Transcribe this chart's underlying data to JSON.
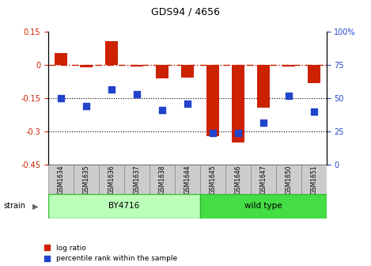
{
  "title": "GDS94 / 4656",
  "samples": [
    "GSM1634",
    "GSM1635",
    "GSM1636",
    "GSM1637",
    "GSM1638",
    "GSM1644",
    "GSM1645",
    "GSM1646",
    "GSM1647",
    "GSM1650",
    "GSM1651"
  ],
  "log_ratio": [
    0.055,
    -0.01,
    0.11,
    -0.005,
    -0.06,
    -0.055,
    -0.32,
    -0.35,
    -0.19,
    -0.005,
    -0.08
  ],
  "percentile_rank": [
    50,
    44,
    57,
    53,
    41,
    46,
    24,
    24,
    32,
    52,
    40
  ],
  "ylim_left": [
    -0.45,
    0.15
  ],
  "ylim_right": [
    0,
    100
  ],
  "yticks_left": [
    0.15,
    0.0,
    -0.15,
    -0.3,
    -0.45
  ],
  "yticks_left_labels": [
    "0.15",
    "0",
    "-0.15",
    "-0.3",
    "-0.45"
  ],
  "yticks_right": [
    100,
    75,
    50,
    25,
    0
  ],
  "yticks_right_labels": [
    "100%",
    "75",
    "50",
    "25",
    "0"
  ],
  "hlines_dotted": [
    -0.15,
    -0.3
  ],
  "hline_dashdot": 0.0,
  "bar_color": "#cc2200",
  "square_color": "#2244cc",
  "by4716_indices": [
    0,
    1,
    2,
    3,
    4,
    5
  ],
  "wildtype_indices": [
    6,
    7,
    8,
    9,
    10
  ],
  "by4716_label": "BY4716",
  "wildtype_label": "wild type",
  "strain_label": "strain",
  "legend_bar": "log ratio",
  "legend_square": "percentile rank within the sample",
  "strain_light_green": "#bbffbb",
  "strain_dark_green": "#44dd44",
  "tick_label_color_left": "#cc2200",
  "tick_label_color_right": "#2244cc",
  "sample_box_color": "#cccccc",
  "sample_box_edge": "#888888"
}
